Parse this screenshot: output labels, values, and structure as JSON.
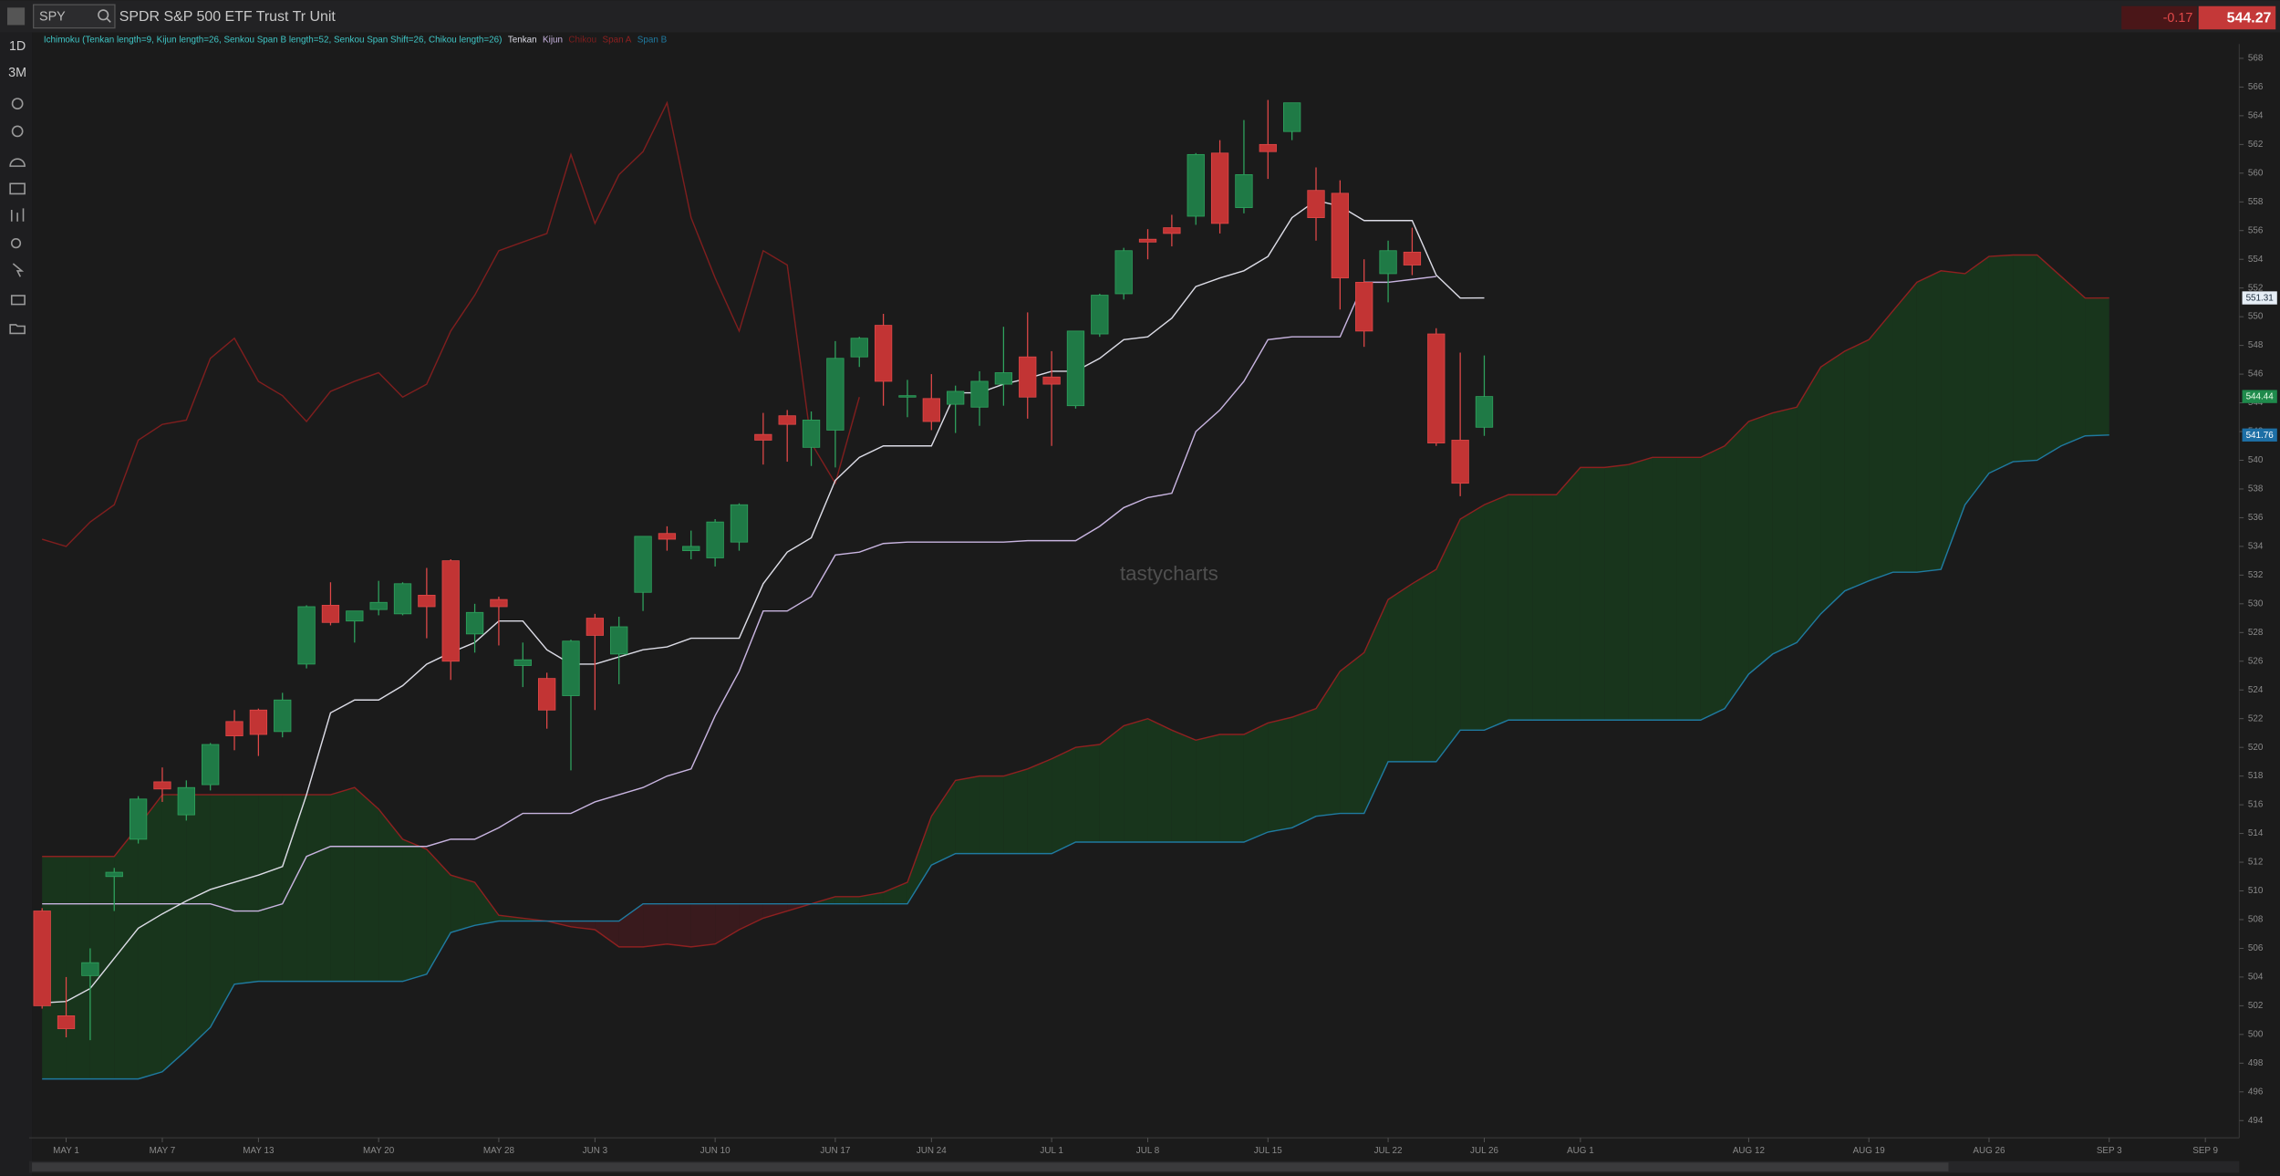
{
  "header": {
    "symbol": "SPY",
    "title": "SPDR S&P 500 ETF Trust Tr Unit",
    "change": -0.17,
    "price": 544.27
  },
  "toolbar": {
    "interval": "1D",
    "range": "3M"
  },
  "watermark": "tastycharts",
  "chart_data": {
    "type": "candlestick",
    "indicator": "Ichimoku (Tenkan length=9, Kijun length=26, Senkou Span B length=52, Senkou Span Shift=26, Chikou length=26)",
    "categories": [
      null,
      "MAY 1",
      null,
      null,
      null,
      "MAY 7",
      null,
      null,
      null,
      "MAY 13",
      null,
      null,
      null,
      null,
      "MAY 20",
      null,
      null,
      null,
      null,
      "MAY 28",
      null,
      null,
      null,
      "JUN 3",
      null,
      null,
      null,
      null,
      "JUN 10",
      null,
      null,
      null,
      null,
      "JUN 17",
      null,
      null,
      null,
      "JUN 24",
      null,
      null,
      null,
      null,
      "JUL 1",
      null,
      null,
      null,
      "JUL 8",
      null,
      null,
      null,
      null,
      "JUL 15",
      null,
      null,
      null,
      null,
      "JUL 22",
      null,
      null,
      null,
      "JUL 26",
      null,
      null,
      null,
      "AUG 1",
      null,
      null,
      null,
      null,
      null,
      null,
      "AUG 12",
      null,
      null,
      null,
      null,
      "AUG 19",
      null,
      null,
      null,
      null,
      "AUG 26",
      null,
      null,
      null,
      null,
      "SEP 3",
      null,
      null,
      null,
      "SEP 9"
    ],
    "candles": {
      "up_color": "#1f7a46",
      "up_edge": "#2fa35e",
      "down_color": "#c23434",
      "down_edge": "#e04848",
      "open": [
        508.6,
        501.3,
        504.1,
        511.0,
        513.6,
        517.6,
        515.3,
        517.4,
        521.8,
        522.6,
        521.1,
        525.8,
        529.9,
        528.8,
        529.6,
        529.3,
        530.6,
        533.0,
        527.9,
        530.3,
        525.7,
        524.8,
        523.6,
        529.0,
        526.5,
        530.8,
        534.9,
        533.7,
        533.2,
        534.3,
        541.8,
        543.1,
        540.9,
        542.1,
        547.2,
        549.4,
        544.4,
        544.3,
        543.9,
        543.7,
        545.3,
        547.2,
        545.8,
        543.8,
        548.8,
        551.6,
        555.4,
        556.2,
        557.0,
        561.4,
        557.6,
        562.0,
        562.9,
        558.8,
        558.6,
        552.4,
        553.0,
        554.5,
        548.8,
        541.4,
        542.3,
        null,
        null,
        null,
        null,
        null,
        null,
        null,
        null,
        null,
        null,
        null,
        null,
        null,
        null,
        null,
        null,
        null,
        null,
        null,
        null,
        null,
        null,
        null,
        null,
        null,
        null,
        null,
        null,
        null,
        null
      ],
      "high": [
        508.8,
        504.0,
        506.0,
        511.6,
        516.6,
        518.6,
        517.7,
        520.3,
        522.6,
        522.7,
        523.8,
        529.9,
        531.5,
        529.5,
        531.6,
        531.5,
        532.5,
        533.1,
        530.0,
        530.5,
        527.3,
        525.2,
        527.5,
        529.3,
        529.1,
        534.7,
        535.4,
        535.1,
        535.9,
        537.0,
        543.3,
        543.5,
        543.4,
        548.3,
        548.6,
        550.2,
        545.6,
        546.0,
        545.2,
        546.2,
        549.3,
        550.3,
        547.6,
        549.0,
        551.6,
        554.8,
        556.1,
        557.1,
        561.4,
        562.3,
        563.7,
        565.1,
        564.9,
        560.4,
        559.5,
        554.0,
        555.3,
        556.2,
        549.2,
        547.5,
        547.3,
        null,
        null,
        null,
        null,
        null,
        null,
        null,
        null,
        null,
        null,
        null,
        null,
        null,
        null,
        null,
        null,
        null,
        null,
        null,
        null,
        null,
        null,
        null,
        null,
        null,
        null,
        null,
        null,
        null,
        null
      ],
      "low": [
        501.8,
        499.8,
        499.6,
        508.6,
        513.3,
        516.2,
        514.9,
        517.0,
        519.8,
        519.4,
        520.7,
        525.5,
        528.5,
        527.3,
        529.2,
        529.2,
        527.6,
        524.7,
        526.6,
        527.1,
        524.2,
        521.3,
        518.4,
        522.6,
        524.4,
        529.5,
        533.7,
        533.1,
        532.6,
        533.7,
        539.7,
        539.9,
        539.6,
        539.5,
        546.5,
        543.8,
        543.0,
        542.1,
        541.9,
        542.4,
        543.8,
        542.9,
        541.0,
        543.6,
        548.6,
        551.2,
        554.0,
        554.9,
        556.4,
        555.8,
        557.2,
        559.6,
        562.3,
        555.3,
        550.5,
        547.9,
        551.0,
        552.9,
        541.0,
        537.5,
        541.7,
        null,
        null,
        null,
        null,
        null,
        null,
        null,
        null,
        null,
        null,
        null,
        null,
        null,
        null,
        null,
        null,
        null,
        null,
        null,
        null,
        null,
        null,
        null,
        null,
        null,
        null,
        null,
        null,
        null,
        null
      ],
      "close": [
        502.0,
        500.4,
        505.0,
        511.3,
        516.4,
        517.1,
        517.2,
        520.2,
        520.8,
        520.9,
        523.3,
        529.8,
        528.7,
        529.5,
        530.1,
        531.4,
        529.8,
        526.0,
        529.4,
        529.8,
        526.1,
        522.6,
        527.4,
        527.8,
        528.4,
        534.7,
        534.5,
        534.0,
        535.7,
        536.9,
        541.4,
        542.5,
        542.8,
        547.1,
        548.5,
        545.5,
        544.5,
        542.7,
        544.8,
        545.5,
        546.1,
        544.4,
        545.3,
        549.0,
        551.5,
        554.6,
        555.2,
        555.8,
        561.3,
        556.5,
        559.9,
        561.5,
        564.9,
        556.9,
        552.7,
        549.0,
        554.6,
        553.6,
        541.2,
        538.4,
        544.44,
        null,
        null,
        null,
        null,
        null,
        null,
        null,
        null,
        null,
        null,
        null,
        null,
        null,
        null,
        null,
        null,
        null,
        null,
        null,
        null,
        null,
        null,
        null,
        null,
        null,
        null,
        null,
        null,
        null,
        null
      ]
    },
    "series": [
      {
        "name": "Tenkan",
        "color": "#dcdce6",
        "values": [
          502.2,
          502.3,
          503.2,
          505.3,
          507.4,
          508.4,
          509.3,
          510.1,
          510.6,
          511.1,
          511.7,
          516.7,
          522.4,
          523.3,
          523.3,
          524.3,
          525.8,
          526.6,
          527.3,
          528.8,
          528.8,
          526.8,
          525.8,
          525.8,
          526.3,
          526.8,
          527.0,
          527.6,
          527.6,
          527.6,
          531.4,
          533.6,
          534.6,
          538.6,
          540.2,
          541.0,
          541.0,
          541.0,
          544.7,
          544.7,
          545.3,
          545.7,
          546.2,
          546.2,
          547.1,
          548.4,
          548.6,
          549.9,
          552.1,
          552.7,
          553.2,
          554.2,
          556.9,
          558.1,
          557.7,
          556.7,
          556.7,
          556.7,
          552.9,
          551.3,
          551.31,
          null,
          null,
          null,
          null,
          null,
          null,
          null,
          null,
          null,
          null,
          null,
          null,
          null,
          null,
          null,
          null,
          null,
          null,
          null,
          null,
          null,
          null,
          null,
          null,
          null,
          null,
          null,
          null,
          null,
          null
        ]
      },
      {
        "name": "Kijun",
        "color": "#c8b4e0",
        "values": [
          509.1,
          509.1,
          509.1,
          509.1,
          509.1,
          509.1,
          509.1,
          509.1,
          508.6,
          508.6,
          509.1,
          512.4,
          513.1,
          513.1,
          513.1,
          513.1,
          513.1,
          513.6,
          513.6,
          514.4,
          515.4,
          515.4,
          515.4,
          516.2,
          516.7,
          517.2,
          518.0,
          518.5,
          522.2,
          525.3,
          529.5,
          529.5,
          530.5,
          533.4,
          533.6,
          534.2,
          534.3,
          534.3,
          534.3,
          534.3,
          534.3,
          534.4,
          534.4,
          534.4,
          535.4,
          536.7,
          537.4,
          537.7,
          542.0,
          543.5,
          545.5,
          548.4,
          548.6,
          548.6,
          548.6,
          552.4,
          552.4,
          552.6,
          552.8,
          null,
          null,
          null,
          null,
          null,
          null,
          null,
          null,
          null,
          null,
          null,
          null,
          null,
          null,
          null,
          null,
          null,
          null,
          null,
          null,
          null,
          null,
          null,
          null,
          null,
          null,
          null,
          null,
          null,
          null,
          null,
          null
        ]
      },
      {
        "name": "Chikou",
        "color": "#7e1e1e",
        "values": [
          534.5,
          534.0,
          535.7,
          536.9,
          541.4,
          542.5,
          542.8,
          547.1,
          548.5,
          545.5,
          544.5,
          542.7,
          544.8,
          545.5,
          546.1,
          544.4,
          545.3,
          549.0,
          551.5,
          554.6,
          555.2,
          555.8,
          561.3,
          556.5,
          559.9,
          561.5,
          564.9,
          556.9,
          552.7,
          549.0,
          554.6,
          553.6,
          541.2,
          538.4,
          544.4,
          null,
          null,
          null,
          null,
          null,
          null,
          null,
          null,
          null,
          null,
          null,
          null,
          null,
          null,
          null,
          null,
          null,
          null,
          null,
          null,
          null,
          null,
          null,
          null,
          null,
          null,
          null,
          null,
          null,
          null,
          null,
          null,
          null,
          null,
          null,
          null,
          null,
          null,
          null,
          null,
          null,
          null,
          null,
          null,
          null,
          null,
          null,
          null,
          null,
          null,
          null,
          null,
          null,
          null,
          null,
          null
        ]
      },
      {
        "name": "Span A",
        "color": "#8e2020",
        "values": [
          512.4,
          512.4,
          512.4,
          512.4,
          514.5,
          516.7,
          516.7,
          516.7,
          516.7,
          516.7,
          516.7,
          516.7,
          516.7,
          517.2,
          515.7,
          513.6,
          512.9,
          511.1,
          510.6,
          508.3,
          508.1,
          507.9,
          507.5,
          507.3,
          506.1,
          506.1,
          506.3,
          506.1,
          506.3,
          507.3,
          508.1,
          508.6,
          509.1,
          509.6,
          509.6,
          509.9,
          510.6,
          515.2,
          517.7,
          518.0,
          518.0,
          518.5,
          519.2,
          520.0,
          520.2,
          521.5,
          522.0,
          521.2,
          520.5,
          520.9,
          520.9,
          521.7,
          522.1,
          522.7,
          525.3,
          526.6,
          530.3,
          531.4,
          532.4,
          535.9,
          536.9,
          537.6,
          537.6,
          537.6,
          539.5,
          539.5,
          539.7,
          540.2,
          540.2,
          540.2,
          541.0,
          542.7,
          543.3,
          543.7,
          546.5,
          547.6,
          548.4,
          550.4,
          552.4,
          553.2,
          553.0,
          554.2,
          554.3,
          554.3,
          552.8,
          551.3,
          551.31,
          null,
          null,
          null,
          null
        ]
      },
      {
        "name": "Span B",
        "color": "#1f7aa0",
        "values": [
          496.9,
          496.9,
          496.9,
          496.9,
          496.9,
          497.4,
          498.9,
          500.5,
          503.5,
          503.7,
          503.7,
          503.7,
          503.7,
          503.7,
          503.7,
          503.7,
          504.2,
          507.1,
          507.6,
          507.9,
          507.9,
          507.9,
          507.9,
          507.9,
          507.9,
          509.1,
          509.1,
          509.1,
          509.1,
          509.1,
          509.1,
          509.1,
          509.1,
          509.1,
          509.1,
          509.1,
          509.1,
          511.8,
          512.6,
          512.6,
          512.6,
          512.6,
          512.6,
          513.4,
          513.4,
          513.4,
          513.4,
          513.4,
          513.4,
          513.4,
          513.4,
          514.1,
          514.4,
          515.2,
          515.4,
          515.4,
          519.0,
          519.0,
          519.0,
          521.2,
          521.2,
          521.9,
          521.9,
          521.9,
          521.9,
          521.9,
          521.9,
          521.9,
          521.9,
          521.9,
          522.7,
          525.1,
          526.5,
          527.3,
          529.3,
          530.9,
          531.6,
          532.2,
          532.2,
          532.4,
          536.9,
          539.1,
          539.9,
          540.0,
          541.0,
          541.7,
          541.76,
          null,
          null,
          null,
          null
        ]
      }
    ],
    "cloud_colors": {
      "bullish": "#173a1c",
      "bearish": "#3e1a1d"
    },
    "indicator_color": "#3fc6c6",
    "ylim": [
      493,
      569
    ],
    "yticks": [
      494,
      496,
      498,
      500,
      502,
      504,
      506,
      508,
      510,
      512,
      514,
      516,
      518,
      520,
      522,
      524,
      526,
      528,
      530,
      532,
      534,
      536,
      538,
      540,
      542,
      544,
      546,
      548,
      550,
      552,
      554,
      556,
      558,
      560,
      562,
      564,
      566,
      568
    ],
    "last_values": [
      {
        "value": 551.31,
        "color": "#e6eef6",
        "text_color": "#1a2a3a"
      },
      {
        "value": 544.44,
        "color": "#1f8a4c",
        "text_color": "#e8ffe8"
      },
      {
        "value": 541.76,
        "color": "#1d6fa5",
        "text_color": "#ffffff"
      }
    ]
  }
}
